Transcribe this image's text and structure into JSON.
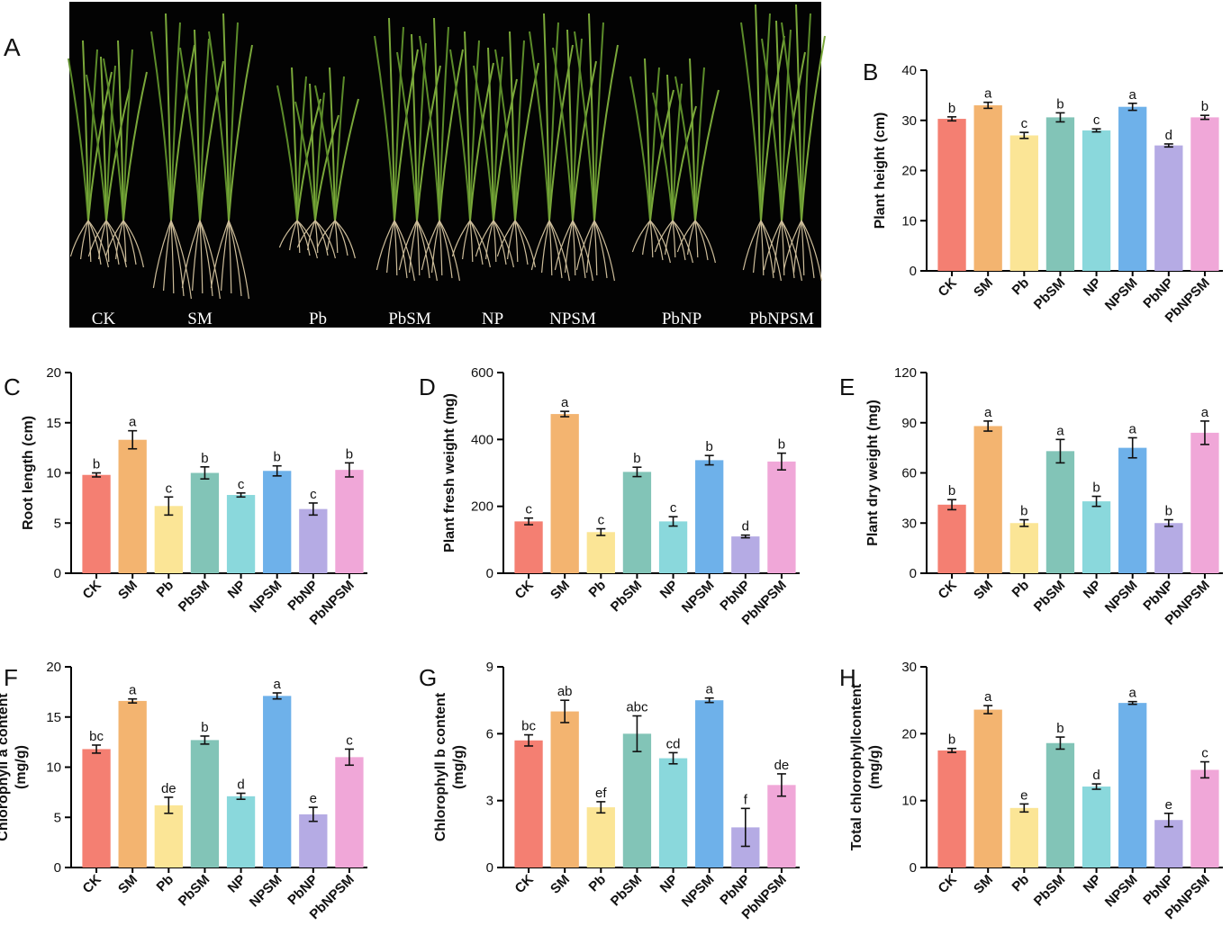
{
  "panel_a": {
    "letter": "A",
    "labels": [
      "CK",
      "SM",
      "Pb",
      "PbSM",
      "NP",
      "NPSM",
      "PbNP",
      "PbNPSM"
    ]
  },
  "colors": [
    "#f47f72",
    "#f3b470",
    "#fbe596",
    "#82c4b7",
    "#8ad8dc",
    "#6eb1ea",
    "#b5abe4",
    "#f0a7d8"
  ],
  "chart_data": [
    {
      "panel": "B",
      "type": "bar",
      "categories": [
        "CK",
        "SM",
        "Pb",
        "PbSM",
        "NP",
        "NPSM",
        "PbNP",
        "PbNPSM"
      ],
      "values": [
        30.3,
        33.0,
        27.0,
        30.6,
        28.0,
        32.7,
        25.0,
        30.6
      ],
      "errors": [
        0.4,
        0.6,
        0.6,
        0.9,
        0.3,
        0.7,
        0.3,
        0.4
      ],
      "letters": [
        "b",
        "a",
        "c",
        "b",
        "c",
        "a",
        "d",
        "b"
      ],
      "ylabel": "Plant height (cm)",
      "ylim": [
        0,
        40
      ],
      "yticks": [
        0,
        10,
        20,
        30,
        40
      ]
    },
    {
      "panel": "C",
      "type": "bar",
      "categories": [
        "CK",
        "SM",
        "Pb",
        "PbSM",
        "NP",
        "NPSM",
        "PbNP",
        "PbNPSM"
      ],
      "values": [
        9.8,
        13.3,
        6.7,
        10.0,
        7.8,
        10.2,
        6.4,
        10.3
      ],
      "errors": [
        0.2,
        0.9,
        0.9,
        0.6,
        0.2,
        0.5,
        0.6,
        0.7
      ],
      "letters": [
        "b",
        "a",
        "c",
        "b",
        "c",
        "b",
        "c",
        "b"
      ],
      "ylabel": "Root length (cm)",
      "ylim": [
        0,
        20
      ],
      "yticks": [
        0,
        5,
        10,
        15,
        20
      ]
    },
    {
      "panel": "D",
      "type": "bar",
      "categories": [
        "CK",
        "SM",
        "Pb",
        "PbSM",
        "NP",
        "NPSM",
        "PbNP",
        "PbNPSM"
      ],
      "values": [
        155,
        476,
        123,
        303,
        155,
        338,
        110,
        334
      ],
      "errors": [
        10,
        8,
        10,
        14,
        14,
        14,
        4,
        25
      ],
      "letters": [
        "c",
        "a",
        "c",
        "b",
        "c",
        "b",
        "d",
        "b"
      ],
      "ylabel": "Plant fresh weight (mg)",
      "ylim": [
        0,
        600
      ],
      "yticks": [
        0,
        200,
        400,
        600
      ]
    },
    {
      "panel": "E",
      "type": "bar",
      "categories": [
        "CK",
        "SM",
        "Pb",
        "PbSM",
        "NP",
        "NPSM",
        "PbNP",
        "PbNPSM"
      ],
      "values": [
        41,
        88,
        30,
        73,
        43,
        75,
        30,
        84
      ],
      "errors": [
        3,
        3,
        2,
        7,
        3,
        6,
        2,
        7
      ],
      "letters": [
        "b",
        "a",
        "b",
        "a",
        "b",
        "a",
        "b",
        "a"
      ],
      "ylabel": "Plant dry weight (mg)",
      "ylim": [
        0,
        120
      ],
      "yticks": [
        0,
        30,
        60,
        90,
        120
      ]
    },
    {
      "panel": "F",
      "type": "bar",
      "categories": [
        "CK",
        "SM",
        "Pb",
        "PbSM",
        "NP",
        "NPSM",
        "PbNP",
        "PbNPSM"
      ],
      "values": [
        11.8,
        16.6,
        6.2,
        12.7,
        7.1,
        17.1,
        5.3,
        11.0
      ],
      "errors": [
        0.4,
        0.2,
        0.8,
        0.4,
        0.3,
        0.3,
        0.7,
        0.8
      ],
      "letters": [
        "bc",
        "a",
        "de",
        "b",
        "d",
        "a",
        "e",
        "c"
      ],
      "ylabel": "Chlorophyll a content (mg/g)",
      "ylabel_lines": [
        "Chlorophyll a content",
        "(mg/g)"
      ],
      "ylim": [
        0,
        20
      ],
      "yticks": [
        0,
        5,
        10,
        15,
        20
      ]
    },
    {
      "panel": "G",
      "type": "bar",
      "categories": [
        "CK",
        "SM",
        "Pb",
        "PbSM",
        "NP",
        "NPSM",
        "PbNP",
        "PbNPSM"
      ],
      "values": [
        5.7,
        7.0,
        2.7,
        6.0,
        4.9,
        7.5,
        1.8,
        3.7
      ],
      "errors": [
        0.25,
        0.5,
        0.25,
        0.8,
        0.25,
        0.1,
        0.85,
        0.5
      ],
      "letters": [
        "bc",
        "ab",
        "ef",
        "abc",
        "cd",
        "a",
        "f",
        "de"
      ],
      "ylabel": "Chlorophyll b content (mg/g)",
      "ylabel_lines": [
        "Chlorophyll b content",
        "(mg/g)"
      ],
      "ylim": [
        0,
        9
      ],
      "yticks": [
        0,
        3,
        6,
        9
      ]
    },
    {
      "panel": "H",
      "type": "bar",
      "categories": [
        "CK",
        "SM",
        "Pb",
        "PbSM",
        "NP",
        "NPSM",
        "PbNP",
        "PbNPSM"
      ],
      "values": [
        17.5,
        23.6,
        8.9,
        18.6,
        12.1,
        24.6,
        7.1,
        14.6
      ],
      "errors": [
        0.3,
        0.6,
        0.6,
        0.9,
        0.4,
        0.2,
        1.0,
        1.2
      ],
      "letters": [
        "b",
        "a",
        "e",
        "b",
        "d",
        "a",
        "e",
        "c"
      ],
      "ylabel": "Total chlorophyllcontent (mg/g)",
      "ylabel_lines": [
        "Total chlorophyllcontent",
        "(mg/g)"
      ],
      "ylim": [
        0,
        30
      ],
      "yticks": [
        0,
        10,
        20,
        30
      ]
    }
  ]
}
